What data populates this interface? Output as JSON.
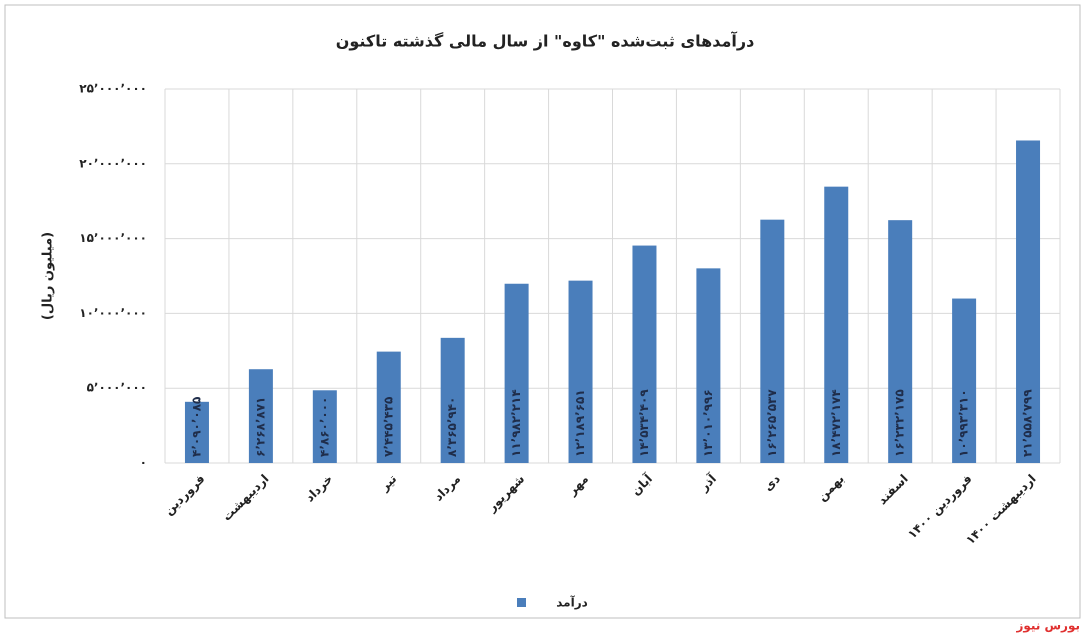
{
  "chart_data": {
    "type": "bar",
    "title": "درآمدهای ثبت‌شده \"کاوه\" از سال مالی گذشته تاکنون",
    "y_label": "(میلیون ریال)",
    "categories": [
      "فروردین",
      "اردیبهشت",
      "خرداد",
      "تیر",
      "مرداد",
      "شهریور",
      "مهر",
      "آبان",
      "آذر",
      "دی",
      "بهمن",
      "اسفند",
      "فروردین ۱۴۰۰",
      "اردیبهشت ۱۴۰۰"
    ],
    "series": [
      {
        "name": "درآمد",
        "color": "#4a7ebb",
        "values": [
          4090085,
          6268871,
          4860000,
          7445435,
          8365940,
          11982214,
          12189651,
          14534409,
          13010996,
          16265537,
          18472174,
          16232175,
          10993310,
          21558799
        ],
        "value_labels": [
          "۴٬۰۹۰٬۰۸۵",
          "۶٬۲۶۸٬۸۷۱",
          "۴٬۸۶۰٬۰۰۰",
          "۷٬۴۴۵٬۴۳۵",
          "۸٬۳۶۵٬۹۴۰",
          "۱۱٬۹۸۲٬۲۱۴",
          "۱۲٬۱۸۹٬۶۵۱",
          "۱۴٬۵۳۴٬۴۰۹",
          "۱۳٬۰۱۰٬۹۹۶",
          "۱۶٬۲۶۵٬۵۳۷",
          "۱۸٬۴۷۲٬۱۷۴",
          "۱۶٬۲۳۲٬۱۷۵",
          "۱۰٬۹۹۳٬۳۱۰",
          "۲۱٬۵۵۸٬۷۹۹"
        ]
      }
    ],
    "ylim": [
      0,
      25000000
    ],
    "yticks": [
      {
        "value": 0,
        "label": "۰"
      },
      {
        "value": 5000000,
        "label": "۵٬۰۰۰٬۰۰۰"
      },
      {
        "value": 10000000,
        "label": "۱۰٬۰۰۰٬۰۰۰"
      },
      {
        "value": 15000000,
        "label": "۱۵٬۰۰۰٬۰۰۰"
      },
      {
        "value": 20000000,
        "label": "۲۰٬۰۰۰٬۰۰۰"
      },
      {
        "value": 25000000,
        "label": "۲۵٬۰۰۰٬۰۰۰"
      }
    ],
    "grid": true,
    "legend": "bottom",
    "source": "بورس نیوز"
  }
}
